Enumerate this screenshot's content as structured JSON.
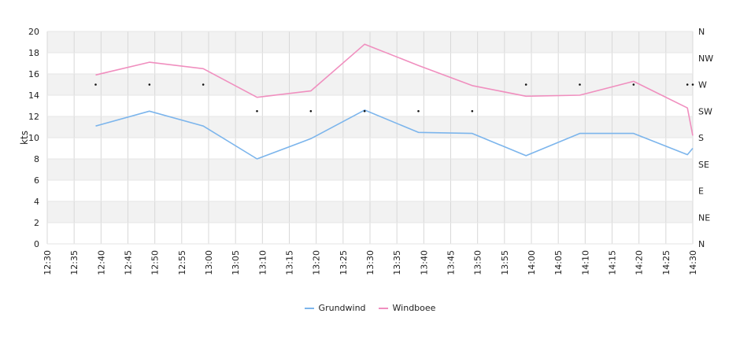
{
  "chart_data": {
    "type": "line",
    "ylabel": "kts",
    "ylim": [
      0,
      20
    ],
    "y_ticks": [
      "0",
      "2",
      "4",
      "6",
      "8",
      "10",
      "12",
      "14",
      "16",
      "18",
      "20"
    ],
    "y_right_ticks": [
      "N",
      "NE",
      "E",
      "SE",
      "S",
      "SW",
      "W",
      "NW",
      "N"
    ],
    "x_ticks": [
      "12:30",
      "12:35",
      "12:40",
      "12:45",
      "12:50",
      "12:55",
      "13:00",
      "13:05",
      "13:10",
      "13:15",
      "13:20",
      "13:25",
      "13:30",
      "13:35",
      "13:40",
      "13:45",
      "13:50",
      "13:55",
      "14:00",
      "14:05",
      "14:10",
      "14:15",
      "14:20",
      "14:25",
      "14:30"
    ],
    "series": [
      {
        "name": "Grundwind",
        "color": "#7cb5ec",
        "points": [
          [
            "12:39",
            11.1
          ],
          [
            "12:49",
            12.5
          ],
          [
            "12:59",
            11.1
          ],
          [
            "13:09",
            8.0
          ],
          [
            "13:19",
            9.9
          ],
          [
            "13:29",
            12.6
          ],
          [
            "13:39",
            10.5
          ],
          [
            "13:49",
            10.4
          ],
          [
            "13:59",
            8.3
          ],
          [
            "14:09",
            10.4
          ],
          [
            "14:19",
            10.4
          ],
          [
            "14:29",
            8.4
          ],
          [
            "14:30",
            9.0
          ]
        ]
      },
      {
        "name": "Windboee",
        "color": "#f08fbf",
        "points": [
          [
            "12:39",
            15.9
          ],
          [
            "12:49",
            17.1
          ],
          [
            "12:59",
            16.5
          ],
          [
            "13:09",
            13.8
          ],
          [
            "13:19",
            14.4
          ],
          [
            "13:29",
            18.8
          ],
          [
            "13:39",
            16.8
          ],
          [
            "13:49",
            14.9
          ],
          [
            "13:59",
            13.9
          ],
          [
            "14:09",
            14.0
          ],
          [
            "14:19",
            15.3
          ],
          [
            "14:29",
            12.8
          ],
          [
            "14:30",
            10.2
          ]
        ]
      }
    ],
    "direction": {
      "points": [
        [
          "12:39",
          "W"
        ],
        [
          "12:49",
          "W"
        ],
        [
          "12:59",
          "W"
        ],
        [
          "13:09",
          "SW"
        ],
        [
          "13:19",
          "SW"
        ],
        [
          "13:29",
          "SW"
        ],
        [
          "13:39",
          "SW"
        ],
        [
          "13:49",
          "SW"
        ],
        [
          "13:59",
          "W"
        ],
        [
          "14:09",
          "W"
        ],
        [
          "14:19",
          "W"
        ],
        [
          "14:29",
          "W"
        ],
        [
          "14:30",
          "W"
        ]
      ]
    },
    "grid": true,
    "legend_position": "bottom-center"
  }
}
